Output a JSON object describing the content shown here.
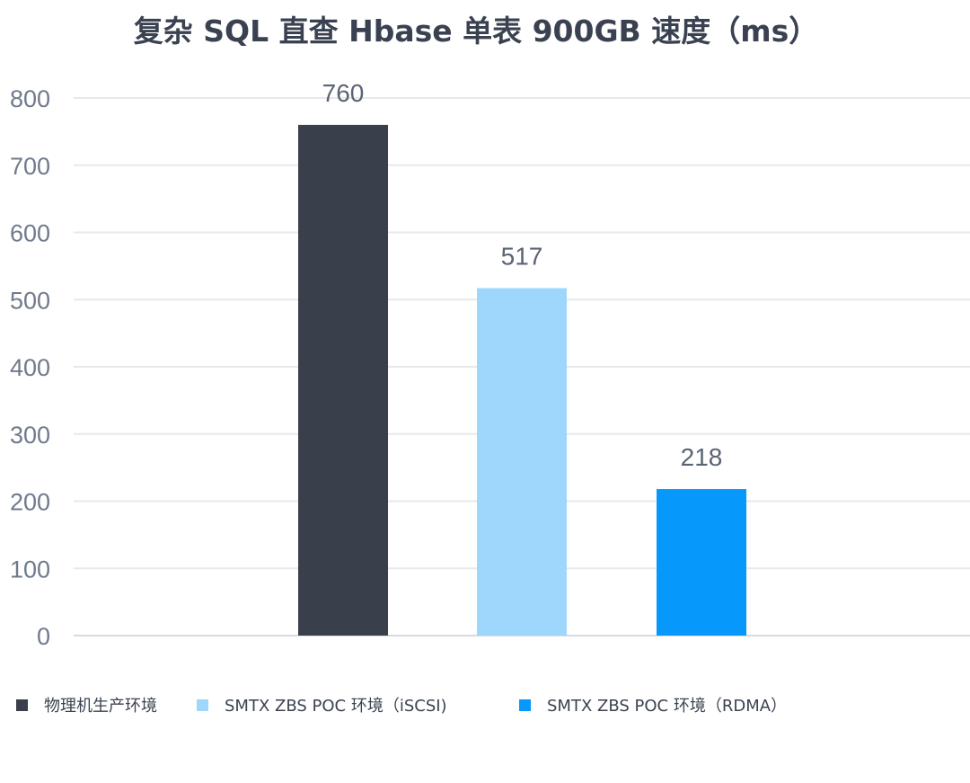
{
  "chart_data": {
    "type": "bar",
    "title": "复杂 SQL 直查 Hbase 单表 900GB 速度（ms）",
    "categories": [
      "物理机生产环境",
      "SMTX ZBS POC 环境（iSCSI)",
      "SMTX ZBS POC 环境（RDMA）"
    ],
    "values": [
      760,
      517,
      218
    ],
    "colors": [
      "#3a3f4c",
      "#9fd6fc",
      "#0798fb"
    ],
    "ylim": [
      0,
      800
    ],
    "yticks": [
      "0",
      "100",
      "200",
      "300",
      "400",
      "500",
      "600",
      "700",
      "800"
    ],
    "xlabel": "",
    "ylabel": "",
    "grid": true,
    "legend_position": "bottom-left",
    "data_labels": [
      "760",
      "517",
      "218"
    ]
  }
}
